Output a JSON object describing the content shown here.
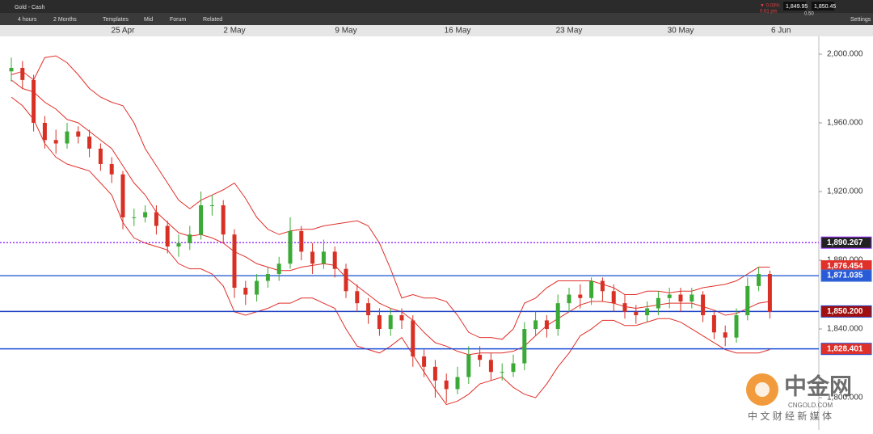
{
  "ui": {
    "instrument": "Gold - Cash",
    "interval": "4 hours",
    "range": "2 Months",
    "buttons": [
      "Templates",
      "Mid",
      "Forum",
      "Related"
    ],
    "change_pct": "▼ 0.03%",
    "change_pts": "0.61 pts",
    "bid": "1,849.95",
    "ask": "1,850.45",
    "spread": "0.50",
    "settings": "Settings",
    "watermark": "中金网",
    "watermark_url": "CNGOLD.COM",
    "watermark_sub": "中 文 财 经 新 媒 体"
  },
  "chart_data": {
    "type": "candlestick",
    "categories": [
      null,
      null,
      null,
      null,
      null,
      null,
      null,
      null,
      null,
      null,
      "25 Apr",
      null,
      null,
      null,
      null,
      null,
      null,
      null,
      null,
      null,
      "2 May",
      null,
      null,
      null,
      null,
      null,
      null,
      null,
      null,
      null,
      "9 May",
      null,
      null,
      null,
      null,
      null,
      null,
      null,
      null,
      null,
      "16 May",
      null,
      null,
      null,
      null,
      null,
      null,
      null,
      null,
      null,
      "23 May",
      null,
      null,
      null,
      null,
      null,
      null,
      null,
      null,
      null,
      "30 May",
      null,
      null,
      null,
      null,
      null,
      null,
      null,
      null,
      "6 Jun"
    ],
    "open": [
      1990,
      1992,
      1985,
      1960,
      1950,
      1948,
      1955,
      1952,
      1945,
      1936,
      1930,
      1905,
      1905,
      1908,
      1900,
      1888,
      1890,
      1895,
      1912,
      1912,
      1895,
      1864,
      1860,
      1868,
      1872,
      1878,
      1897,
      1885,
      1878,
      1885,
      1875,
      1862,
      1855,
      1848,
      1840,
      1848,
      1845,
      1824,
      1818,
      1810,
      1805,
      1812,
      1825,
      1822,
      1815,
      1815,
      1820,
      1840,
      1845,
      1840,
      1855,
      1860,
      1858,
      1868,
      1862,
      1855,
      1850,
      1848,
      1852,
      1858,
      1860,
      1856,
      1860,
      1848,
      1838,
      1835,
      1848,
      1865,
      1872,
      null
    ],
    "high": [
      1998,
      1996,
      1988,
      1964,
      1956,
      1960,
      1958,
      1956,
      1948,
      1940,
      1932,
      1910,
      1912,
      1912,
      1903,
      1895,
      1900,
      1920,
      1918,
      1915,
      1898,
      1868,
      1872,
      1876,
      1882,
      1905,
      1900,
      1890,
      1892,
      1888,
      1878,
      1866,
      1858,
      1852,
      1852,
      1852,
      1848,
      1828,
      1822,
      1814,
      1818,
      1830,
      1830,
      1826,
      1820,
      1825,
      1844,
      1850,
      1848,
      1860,
      1864,
      1866,
      1870,
      1870,
      1866,
      1860,
      1854,
      1856,
      1862,
      1864,
      1864,
      1864,
      1862,
      1850,
      1842,
      1852,
      1870,
      1876,
      1874,
      null
    ],
    "low": [
      1984,
      1980,
      1955,
      1945,
      1942,
      1945,
      1948,
      1940,
      1932,
      1925,
      1898,
      1900,
      1902,
      1895,
      1884,
      1882,
      1886,
      1892,
      1906,
      1890,
      1858,
      1854,
      1856,
      1864,
      1868,
      1875,
      1880,
      1872,
      1875,
      1870,
      1858,
      1850,
      1843,
      1836,
      1836,
      1840,
      1818,
      1812,
      1800,
      1797,
      1802,
      1808,
      1818,
      1810,
      1810,
      1812,
      1816,
      1836,
      1835,
      1836,
      1850,
      1852,
      1854,
      1856,
      1850,
      1846,
      1843,
      1844,
      1848,
      1852,
      1850,
      1852,
      1844,
      1834,
      1830,
      1832,
      1845,
      1862,
      1846,
      null
    ],
    "close": [
      1992,
      1985,
      1960,
      1950,
      1948,
      1955,
      1952,
      1945,
      1936,
      1930,
      1905,
      1905,
      1908,
      1900,
      1888,
      1890,
      1895,
      1912,
      1912,
      1895,
      1864,
      1860,
      1868,
      1872,
      1878,
      1897,
      1885,
      1878,
      1885,
      1875,
      1862,
      1855,
      1848,
      1840,
      1848,
      1845,
      1824,
      1818,
      1810,
      1805,
      1812,
      1825,
      1822,
      1815,
      1815,
      1820,
      1840,
      1845,
      1840,
      1855,
      1860,
      1858,
      1868,
      1862,
      1855,
      1850,
      1848,
      1852,
      1858,
      1860,
      1856,
      1860,
      1848,
      1838,
      1835,
      1848,
      1865,
      1872,
      1850,
      null
    ],
    "up_color": "#3aa935",
    "down_color": "#d93025",
    "bands": {
      "color": "#e0302a",
      "upper": [
        1988,
        1990,
        1985,
        1998,
        1999,
        1995,
        1988,
        1980,
        1975,
        1972,
        1970,
        1960,
        1945,
        1935,
        1925,
        1915,
        1910,
        1915,
        1918,
        1921,
        1925,
        1916,
        1905,
        1898,
        1895,
        1897,
        1898,
        1898,
        1900,
        1901,
        1902,
        1903,
        1900,
        1890,
        1875,
        1858,
        1860,
        1858,
        1858,
        1856,
        1848,
        1838,
        1835,
        1835,
        1834,
        1840,
        1855,
        1858,
        1864,
        1868,
        1868,
        1868,
        1868,
        1866,
        1864,
        1860,
        1860,
        1862,
        1862,
        1861,
        1862,
        1862,
        1864,
        1865,
        1866,
        1868,
        1872,
        1876,
        1876,
        null
      ],
      "middle": [
        1985,
        1980,
        1978,
        1972,
        1968,
        1962,
        1960,
        1955,
        1950,
        1945,
        1935,
        1925,
        1918,
        1908,
        1902,
        1896,
        1894,
        1895,
        1893,
        1890,
        1885,
        1882,
        1878,
        1876,
        1874,
        1874,
        1876,
        1877,
        1878,
        1877,
        1870,
        1865,
        1860,
        1855,
        1852,
        1850,
        1845,
        1838,
        1832,
        1830,
        1827,
        1825,
        1826,
        1826,
        1826,
        1827,
        1830,
        1836,
        1842,
        1846,
        1850,
        1854,
        1856,
        1856,
        1855,
        1853,
        1852,
        1853,
        1854,
        1855,
        1855,
        1855,
        1853,
        1851,
        1848,
        1849,
        1852,
        1855,
        1856,
        null
      ],
      "lower": [
        1975,
        1970,
        1962,
        1948,
        1940,
        1936,
        1934,
        1932,
        1925,
        1918,
        1902,
        1893,
        1890,
        1888,
        1886,
        1878,
        1875,
        1875,
        1872,
        1865,
        1850,
        1848,
        1850,
        1852,
        1855,
        1855,
        1858,
        1858,
        1855,
        1852,
        1840,
        1830,
        1828,
        1826,
        1830,
        1835,
        1825,
        1815,
        1805,
        1796,
        1798,
        1802,
        1808,
        1810,
        1812,
        1806,
        1802,
        1800,
        1808,
        1818,
        1826,
        1836,
        1840,
        1845,
        1845,
        1842,
        1842,
        1844,
        1846,
        1846,
        1844,
        1840,
        1836,
        1832,
        1828,
        1826,
        1826,
        1826,
        1828,
        null
      ]
    },
    "levels": [
      {
        "value": 1890.267,
        "label": "1,890.267",
        "color": "#9b30ff",
        "style": "dotted",
        "box": "#222",
        "line": true
      },
      {
        "value": 1876.454,
        "label": "1,876.454",
        "color": "#e0302a",
        "style": "solid",
        "box": "#e0302a",
        "line": false
      },
      {
        "value": 1871.035,
        "label": "1,871.035",
        "color": "#3b6fd6",
        "style": "solid",
        "box": "#2a5bd7",
        "line": true
      },
      {
        "value": 1850.2,
        "label": "1,850.200",
        "color": "#1d3fc4",
        "style": "solid",
        "box": "#a01010",
        "line": true
      },
      {
        "value": 1828.401,
        "label": "1,828.401",
        "color": "#1d4fd8",
        "style": "solid",
        "box": "#e0302a",
        "line": true
      }
    ],
    "ylim": [
      1781.2,
      2010.35
    ],
    "yticks": [
      {
        "value": 2000,
        "label": "2,000.000"
      },
      {
        "value": 1960,
        "label": "1,960.000"
      },
      {
        "value": 1920,
        "label": "1,920.000"
      },
      {
        "value": 1880,
        "label": "1,880.000"
      },
      {
        "value": 1840,
        "label": "1,840.000"
      },
      {
        "value": 1800,
        "label": "1,800.000"
      }
    ]
  }
}
